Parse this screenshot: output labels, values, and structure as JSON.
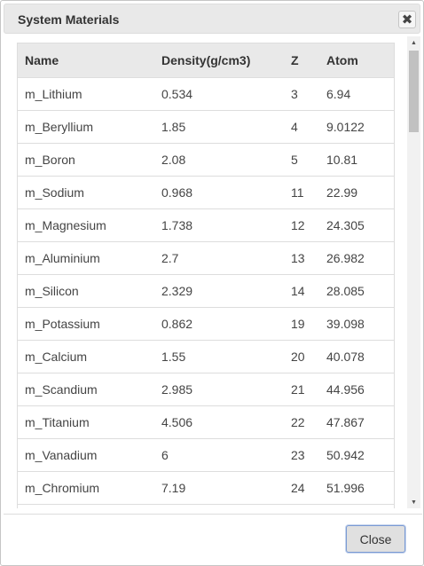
{
  "dialog": {
    "title": "System Materials",
    "close_icon": "close-x-icon",
    "close_button_label": "Close"
  },
  "table": {
    "headers": [
      "Name",
      "Density(g/cm3)",
      "Z",
      "Atom"
    ],
    "rows": [
      [
        "m_Lithium",
        "0.534",
        "3",
        "6.94"
      ],
      [
        "m_Beryllium",
        "1.85",
        "4",
        "9.0122"
      ],
      [
        "m_Boron",
        "2.08",
        "5",
        "10.81"
      ],
      [
        "m_Sodium",
        "0.968",
        "11",
        "22.99"
      ],
      [
        "m_Magnesium",
        "1.738",
        "12",
        "24.305"
      ],
      [
        "m_Aluminium",
        "2.7",
        "13",
        "26.982"
      ],
      [
        "m_Silicon",
        "2.329",
        "14",
        "28.085"
      ],
      [
        "m_Potassium",
        "0.862",
        "19",
        "39.098"
      ],
      [
        "m_Calcium",
        "1.55",
        "20",
        "40.078"
      ],
      [
        "m_Scandium",
        "2.985",
        "21",
        "44.956"
      ],
      [
        "m_Titanium",
        "4.506",
        "22",
        "47.867"
      ],
      [
        "m_Vanadium",
        "6",
        "23",
        "50.942"
      ],
      [
        "m_Chromium",
        "7.19",
        "24",
        "51.996"
      ]
    ]
  }
}
